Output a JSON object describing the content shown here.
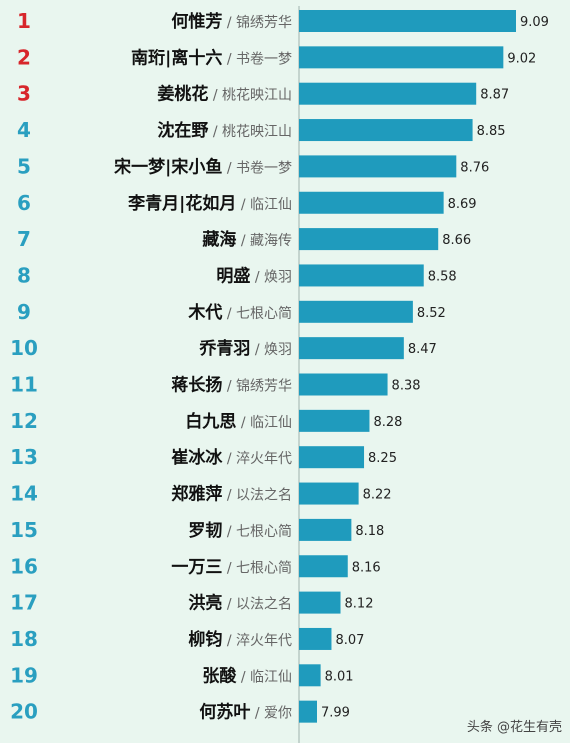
{
  "chart_data": {
    "type": "bar",
    "orientation": "horizontal",
    "bar_color": "#1f9bbd",
    "rank_colors": {
      "top3": "#d7262b",
      "rest": "#2a9fc0"
    },
    "xlim": [
      6.7,
      9.5
    ],
    "rows": [
      {
        "rank": "1",
        "name": "何惟芳",
        "drama": "锦绣芳华",
        "value": 9.09
      },
      {
        "rank": "2",
        "name": "南珩|离十六",
        "drama": "书卷一梦",
        "value": 9.02
      },
      {
        "rank": "3",
        "name": "姜桃花",
        "drama": "桃花映江山",
        "value": 8.87
      },
      {
        "rank": "4",
        "name": "沈在野",
        "drama": "桃花映江山",
        "value": 8.85
      },
      {
        "rank": "5",
        "name": "宋一梦|宋小鱼",
        "drama": "书卷一梦",
        "value": 8.76
      },
      {
        "rank": "6",
        "name": "李青月|花如月",
        "drama": "临江仙",
        "value": 8.69
      },
      {
        "rank": "7",
        "name": "藏海",
        "drama": "藏海传",
        "value": 8.66
      },
      {
        "rank": "8",
        "name": "明盛",
        "drama": "焕羽",
        "value": 8.58
      },
      {
        "rank": "9",
        "name": "木代",
        "drama": "七根心简",
        "value": 8.52
      },
      {
        "rank": "10",
        "name": "乔青羽",
        "drama": "焕羽",
        "value": 8.47
      },
      {
        "rank": "11",
        "name": "蒋长扬",
        "drama": "锦绣芳华",
        "value": 8.38
      },
      {
        "rank": "12",
        "name": "白九思",
        "drama": "临江仙",
        "value": 8.28
      },
      {
        "rank": "13",
        "name": "崔冰冰",
        "drama": "淬火年代",
        "value": 8.25
      },
      {
        "rank": "14",
        "name": "郑雅萍",
        "drama": "以法之名",
        "value": 8.22
      },
      {
        "rank": "15",
        "name": "罗韧",
        "drama": "七根心简",
        "value": 8.18
      },
      {
        "rank": "16",
        "name": "一万三",
        "drama": "七根心简",
        "value": 8.16
      },
      {
        "rank": "17",
        "name": "洪亮",
        "drama": "以法之名",
        "value": 8.12
      },
      {
        "rank": "18",
        "name": "柳钧",
        "drama": "淬火年代",
        "value": 8.07
      },
      {
        "rank": "19",
        "name": "张酸",
        "drama": "临江仙",
        "value": 8.01
      },
      {
        "rank": "20",
        "name": "何苏叶",
        "drama": "爱你",
        "value": 7.99
      }
    ]
  },
  "watermark": "头条 @花生有壳"
}
